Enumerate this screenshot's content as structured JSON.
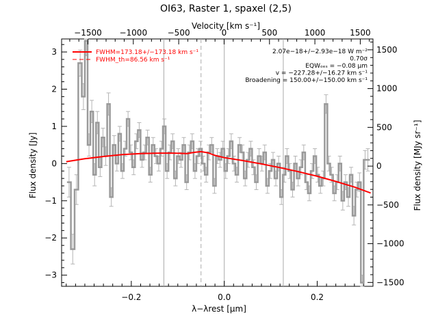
{
  "chart_data": {
    "type": "line",
    "title": "OI63, Raster 1, spaxel (2,5)",
    "xlabel": "λ−λrest [μm]",
    "ylabel_left": "Flux density [Jy]",
    "ylabel_right": "Flux density [MJy sr⁻¹]",
    "xlabel_top": "Velocity [km s⁻¹]",
    "xlim": [
      -0.35,
      0.32
    ],
    "ylim": [
      -3.3,
      3.35
    ],
    "ylim_right": [
      -1550,
      1640
    ],
    "xlim_top": [
      -1790,
      1640
    ],
    "x_ticks": [
      {
        "value": -0.2,
        "label": "−0.2"
      },
      {
        "value": 0.0,
        "label": "0.0"
      },
      {
        "value": 0.2,
        "label": "0.2"
      }
    ],
    "y_ticks": [
      {
        "value": 3,
        "label": "3"
      },
      {
        "value": 2,
        "label": "2"
      },
      {
        "value": 1,
        "label": "1"
      },
      {
        "value": 0,
        "label": "0"
      },
      {
        "value": -1,
        "label": "−1"
      },
      {
        "value": -2,
        "label": "−2"
      },
      {
        "value": -3,
        "label": "−3"
      }
    ],
    "y_right_ticks": [
      {
        "value": 1500,
        "label": "1500"
      },
      {
        "value": 1000,
        "label": "1000"
      },
      {
        "value": 500,
        "label": "500"
      },
      {
        "value": 0,
        "label": "0"
      },
      {
        "value": -500,
        "label": "−500"
      },
      {
        "value": -1000,
        "label": "−1000"
      },
      {
        "value": -1500,
        "label": "−1500"
      }
    ],
    "x_top_ticks": [
      {
        "value": -1500,
        "label": "−1500"
      },
      {
        "value": -1000,
        "label": "−1000"
      },
      {
        "value": -500,
        "label": "−500"
      },
      {
        "value": 0,
        "label": "0"
      },
      {
        "value": 500,
        "label": "500"
      },
      {
        "value": 1000,
        "label": "1000"
      },
      {
        "value": 1500,
        "label": "1500"
      }
    ],
    "vlines": [
      {
        "x": -0.13,
        "style": "solid"
      },
      {
        "x": -0.05,
        "style": "dashed"
      },
      {
        "x": 0.0,
        "style": "solid"
      },
      {
        "x": 0.127,
        "style": "solid"
      }
    ],
    "legend": [
      {
        "label": "FWHM=173.18+/−173.18 km s⁻¹",
        "style": "solid",
        "color": "#ff0000"
      },
      {
        "label": "FWHM_th=86.56 km s⁻¹",
        "style": "dashed",
        "color": "#ff0000"
      }
    ],
    "annotations": [
      "2.07e−18+/−2.93e−18 W m⁻²",
      "0.70σ",
      "EQWₒₑₛ = −0.08 μm",
      "v = −227.28+/−16.27 km s⁻¹",
      "Broadening = 150.00+/−150.00 km s⁻¹"
    ],
    "colors": {
      "data": "#9a9a9a",
      "error": "#b4b4b4",
      "fit": "#ff0000",
      "line": "#aaaaaa"
    },
    "series": [
      {
        "name": "data",
        "style": "step-with-errorbars",
        "x": [
          -0.334,
          -0.326,
          -0.318,
          -0.31,
          -0.303,
          -0.297,
          -0.291,
          -0.285,
          -0.279,
          -0.273,
          -0.267,
          -0.261,
          -0.255,
          -0.249,
          -0.243,
          -0.237,
          -0.231,
          -0.225,
          -0.219,
          -0.213,
          -0.207,
          -0.201,
          -0.195,
          -0.189,
          -0.183,
          -0.177,
          -0.171,
          -0.165,
          -0.159,
          -0.153,
          -0.147,
          -0.141,
          -0.135,
          -0.129,
          -0.123,
          -0.117,
          -0.111,
          -0.105,
          -0.099,
          -0.093,
          -0.087,
          -0.081,
          -0.075,
          -0.069,
          -0.063,
          -0.057,
          -0.051,
          -0.045,
          -0.039,
          -0.033,
          -0.027,
          -0.021,
          -0.015,
          -0.009,
          -0.003,
          0.003,
          0.009,
          0.015,
          0.021,
          0.027,
          0.033,
          0.039,
          0.045,
          0.051,
          0.057,
          0.063,
          0.069,
          0.075,
          0.081,
          0.087,
          0.093,
          0.099,
          0.105,
          0.111,
          0.117,
          0.123,
          0.129,
          0.135,
          0.141,
          0.147,
          0.153,
          0.159,
          0.165,
          0.171,
          0.177,
          0.183,
          0.189,
          0.195,
          0.201,
          0.207,
          0.213,
          0.219,
          0.225,
          0.231,
          0.237,
          0.243,
          0.249,
          0.255,
          0.261,
          0.267,
          0.273,
          0.279,
          0.285,
          0.291,
          0.297,
          0.303,
          0.309
        ],
        "y": [
          -0.5,
          -2.3,
          -0.7,
          2.7,
          1.8,
          3.3,
          0.5,
          1.4,
          -0.3,
          1.1,
          -0.1,
          0.7,
          0.2,
          1.6,
          -0.9,
          0.5,
          0.0,
          0.8,
          -0.2,
          0.4,
          1.2,
          0.3,
          -0.1,
          0.6,
          0.9,
          0.1,
          0.3,
          0.7,
          -0.3,
          0.5,
          0.2,
          0.0,
          0.4,
          1.0,
          -0.2,
          0.3,
          0.6,
          -0.4,
          0.2,
          0.1,
          0.5,
          -0.5,
          0.3,
          0.6,
          -0.2,
          0.2,
          0.4,
          0.0,
          -0.3,
          0.3,
          0.5,
          -0.6,
          0.2,
          0.1,
          0.4,
          -0.2,
          0.2,
          0.6,
          0.0,
          -0.3,
          0.5,
          0.3,
          -0.4,
          0.1,
          0.4,
          -0.1,
          -0.5,
          0.2,
          0.0,
          0.3,
          -0.6,
          -0.2,
          0.1,
          -0.4,
          0.0,
          -0.9,
          -0.3,
          0.2,
          -0.2,
          -0.7,
          0.0,
          -0.4,
          -0.1,
          0.3,
          -0.5,
          -0.8,
          -0.2,
          0.2,
          -0.3,
          -0.6,
          -0.4,
          1.6,
          0.0,
          -0.3,
          -0.8,
          -0.5,
          0.0,
          -1.0,
          -0.5,
          -0.9,
          -0.3,
          -1.4,
          -0.7,
          -0.5,
          -3.2,
          0.1,
          0.1
        ],
        "yerr": [
          0.4,
          0.4,
          0.4,
          0.35,
          0.35,
          0.4,
          0.3,
          0.3,
          0.3,
          0.3,
          0.25,
          0.25,
          0.25,
          0.3,
          0.25,
          0.25,
          0.2,
          0.2,
          0.2,
          0.2,
          0.2,
          0.2,
          0.2,
          0.2,
          0.2,
          0.2,
          0.2,
          0.2,
          0.2,
          0.2,
          0.2,
          0.2,
          0.2,
          0.2,
          0.2,
          0.2,
          0.2,
          0.2,
          0.2,
          0.2,
          0.2,
          0.2,
          0.2,
          0.2,
          0.2,
          0.2,
          0.2,
          0.2,
          0.2,
          0.2,
          0.2,
          0.2,
          0.2,
          0.2,
          0.2,
          0.2,
          0.2,
          0.2,
          0.2,
          0.2,
          0.2,
          0.2,
          0.2,
          0.2,
          0.2,
          0.2,
          0.2,
          0.2,
          0.2,
          0.2,
          0.2,
          0.2,
          0.2,
          0.2,
          0.2,
          0.2,
          0.2,
          0.2,
          0.2,
          0.2,
          0.2,
          0.2,
          0.2,
          0.2,
          0.2,
          0.2,
          0.2,
          0.2,
          0.2,
          0.2,
          0.2,
          0.25,
          0.2,
          0.2,
          0.2,
          0.2,
          0.2,
          0.25,
          0.2,
          0.25,
          0.2,
          0.25,
          0.2,
          0.25,
          0.2,
          0.25,
          0.3
        ]
      },
      {
        "name": "fit",
        "style": "line",
        "x": [
          -0.34,
          -0.3,
          -0.26,
          -0.22,
          -0.18,
          -0.14,
          -0.11,
          -0.08,
          -0.065,
          -0.05,
          -0.035,
          -0.02,
          0.0,
          0.04,
          0.08,
          0.12,
          0.16,
          0.2,
          0.24,
          0.28,
          0.315
        ],
        "y": [
          0.05,
          0.13,
          0.19,
          0.24,
          0.27,
          0.28,
          0.28,
          0.27,
          0.3,
          0.32,
          0.29,
          0.22,
          0.16,
          0.08,
          -0.01,
          -0.11,
          -0.22,
          -0.34,
          -0.48,
          -0.63,
          -0.79
        ]
      }
    ]
  }
}
